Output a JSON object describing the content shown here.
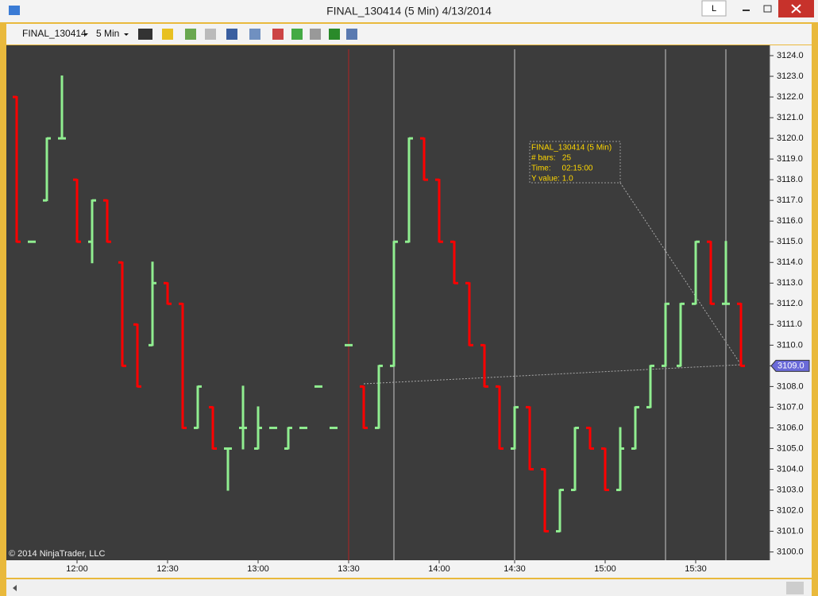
{
  "window": {
    "title": "FINAL_130414 (5 Min)  4/13/2014",
    "button": "L"
  },
  "toolbar": {
    "instrument": "FINAL_130414",
    "interval": "5 Min"
  },
  "chart_data": {
    "type": "ohlc",
    "up_color": "#90ee90",
    "down_color": "#ff0000",
    "categories": [
      null,
      null,
      null,
      null,
      "12:00",
      null,
      null,
      null,
      null,
      null,
      "12:30",
      null,
      null,
      null,
      null,
      null,
      "13:00",
      null,
      null,
      null,
      null,
      null,
      "13:30",
      null,
      null,
      null,
      null,
      null,
      "14:00",
      null,
      null,
      null,
      null,
      "14:30",
      null,
      null,
      null,
      null,
      null,
      "15:00",
      null,
      null,
      null,
      null,
      null,
      "15:30",
      null,
      null,
      null
    ],
    "open": [
      3122,
      3115,
      3117,
      3120,
      3118,
      3115,
      3117,
      3114,
      3111,
      3110,
      3113,
      3112,
      3106,
      3107,
      3105,
      3106,
      3105,
      3106,
      3105,
      3106,
      3108,
      3106,
      3110,
      3108,
      3106,
      3109,
      3115,
      3120,
      3118,
      3115,
      3113,
      3110,
      3108,
      3105,
      3107,
      3104,
      3101,
      3103,
      3106,
      3105,
      3103,
      3105,
      3107,
      3109,
      3109,
      3112,
      3115,
      3112,
      3112
    ],
    "high": [
      3122,
      3115,
      3120,
      3123,
      3118,
      3117,
      3117,
      3114,
      3111,
      3114,
      3113,
      3112,
      3108,
      3107,
      3105,
      3108,
      3107,
      3106,
      3106,
      3106,
      3108,
      3106,
      3110,
      3108,
      3109,
      3115,
      3120,
      3120,
      3118,
      3115,
      3113,
      3110,
      3108,
      3107,
      3107,
      3104,
      3103,
      3106,
      3106,
      3105,
      3106,
      3107,
      3109,
      3112,
      3112,
      3115,
      3115,
      3115,
      3112
    ],
    "low": [
      3115,
      3115,
      3117,
      3120,
      3115,
      3114,
      3115,
      3109,
      3108,
      3110,
      3112,
      3106,
      3106,
      3105,
      3103,
      3105,
      3105,
      3106,
      3105,
      3106,
      3108,
      3106,
      3110,
      3106,
      3106,
      3109,
      3115,
      3118,
      3115,
      3113,
      3110,
      3108,
      3105,
      3105,
      3104,
      3101,
      3101,
      3103,
      3105,
      3103,
      3103,
      3105,
      3107,
      3109,
      3109,
      3112,
      3112,
      3112,
      3109
    ],
    "close": [
      3115,
      3115,
      3120,
      3120,
      3115,
      3117,
      3115,
      3109,
      3108,
      3113,
      3112,
      3106,
      3108,
      3105,
      3105,
      3106,
      3106,
      3106,
      3106,
      3106,
      3108,
      3106,
      3110,
      3106,
      3109,
      3115,
      3120,
      3118,
      3115,
      3113,
      3110,
      3108,
      3105,
      3107,
      3104,
      3101,
      3103,
      3106,
      3105,
      3103,
      3105,
      3107,
      3109,
      3112,
      3112,
      3115,
      3112,
      3112,
      3109
    ],
    "ylim": [
      3099.6,
      3124.5
    ],
    "yticks": [
      {
        "value": 3100,
        "label": "3100.0"
      },
      {
        "value": 3101,
        "label": "3101.0"
      },
      {
        "value": 3102,
        "label": "3102.0"
      },
      {
        "value": 3103,
        "label": "3103.0"
      },
      {
        "value": 3104,
        "label": "3104.0"
      },
      {
        "value": 3105,
        "label": "3105.0"
      },
      {
        "value": 3106,
        "label": "3106.0"
      },
      {
        "value": 3107,
        "label": "3107.0"
      },
      {
        "value": 3108,
        "label": "3108.0"
      },
      {
        "value": 3109,
        "label": "3109.0"
      },
      {
        "value": 3110,
        "label": "3110.0"
      },
      {
        "value": 3111,
        "label": "3111.0"
      },
      {
        "value": 3112,
        "label": "3112.0"
      },
      {
        "value": 3113,
        "label": "3113.0"
      },
      {
        "value": 3114,
        "label": "3114.0"
      },
      {
        "value": 3115,
        "label": "3115.0"
      },
      {
        "value": 3116,
        "label": "3116.0"
      },
      {
        "value": 3117,
        "label": "3117.0"
      },
      {
        "value": 3118,
        "label": "3118.0"
      },
      {
        "value": 3119,
        "label": "3119.0"
      },
      {
        "value": 3120,
        "label": "3120.0"
      },
      {
        "value": 3121,
        "label": "3121.0"
      },
      {
        "value": 3122,
        "label": "3122.0"
      },
      {
        "value": 3123,
        "label": "3123.0"
      },
      {
        "value": 3124,
        "label": "3124.0"
      }
    ],
    "last_price": {
      "value": 3109,
      "label": "3109.0"
    },
    "copyright": "© 2014 NinjaTrader, LLC",
    "tooltip": [
      "FINAL_130414 (5 Min)",
      "# bars:   25",
      "Time:     02:15:00",
      "Y value: 1.0"
    ]
  }
}
